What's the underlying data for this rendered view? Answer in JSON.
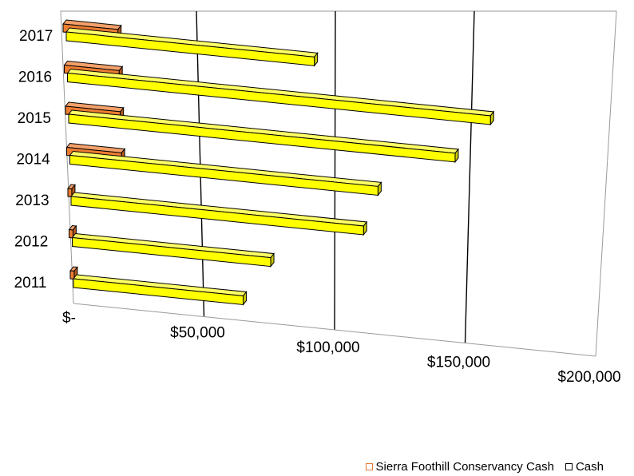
{
  "chart_data": {
    "type": "bar",
    "orientation": "horizontal",
    "style": "3d",
    "categories": [
      "2011",
      "2012",
      "2013",
      "2014",
      "2015",
      "2016",
      "2017"
    ],
    "series": [
      {
        "name": "Sierra Foothill Conservancy Cash",
        "values": [
          1500,
          1500,
          1500,
          21000,
          21000,
          21000,
          21000
        ],
        "color": "#ED7D31"
      },
      {
        "name": "Cash",
        "values": [
          65000,
          76000,
          112000,
          118000,
          148000,
          162000,
          95000
        ],
        "color": "#FFFF00"
      }
    ],
    "xlim": [
      0,
      200000
    ],
    "x_tick_labels": [
      "$-",
      "$50,000",
      "$100,000",
      "$150,000",
      "$200,000"
    ],
    "grid": true,
    "legend_position": "bottom-right"
  }
}
